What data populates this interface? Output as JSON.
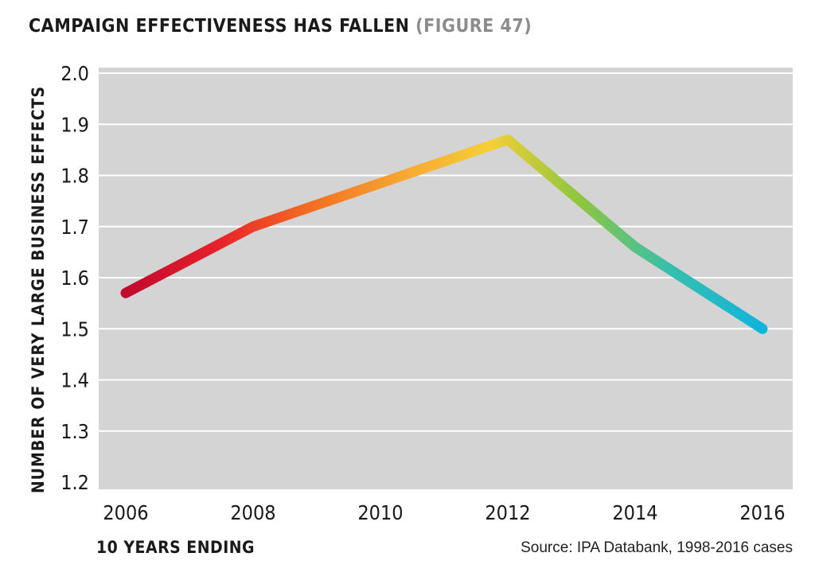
{
  "chart_data": {
    "type": "line",
    "title": "CAMPAIGN EFFECTIVENESS HAS FALLEN",
    "subtitle": "(FIGURE 47)",
    "xlabel": "10 YEARS ENDING",
    "ylabel": "NUMBER OF VERY LARGE BUSINESS EFFECTS",
    "source": "Source: IPA Databank, 1998-2016 cases",
    "x": [
      "2006",
      "2008",
      "2010",
      "2012",
      "2014",
      "2016"
    ],
    "x_ticks": [
      "2006",
      "2008",
      "2010",
      "2012",
      "2014",
      "2016"
    ],
    "x_numeric": [
      2006,
      2008,
      2010,
      2012,
      2014,
      2016
    ],
    "points": [
      {
        "x": 2006,
        "y": 1.57
      },
      {
        "x": 2008,
        "y": 1.7
      },
      {
        "x": 2012,
        "y": 1.87
      },
      {
        "x": 2014,
        "y": 1.66
      },
      {
        "x": 2016,
        "y": 1.5
      }
    ],
    "y_ticks": [
      "2.0",
      "1.9",
      "1.8",
      "1.7",
      "1.6",
      "1.5",
      "1.4",
      "1.3",
      "1.2"
    ],
    "ylim": [
      1.2,
      2.0
    ],
    "xlim": [
      2006,
      2016
    ],
    "grid": true,
    "colors": {
      "plot_background": "#d4d4d4",
      "gridline": "#ffffff",
      "gradient": [
        "#c00a2e",
        "#e8202a",
        "#f26d21",
        "#f7a531",
        "#f6cf36",
        "#8cc63f",
        "#35bfae",
        "#10b4dc"
      ]
    }
  }
}
